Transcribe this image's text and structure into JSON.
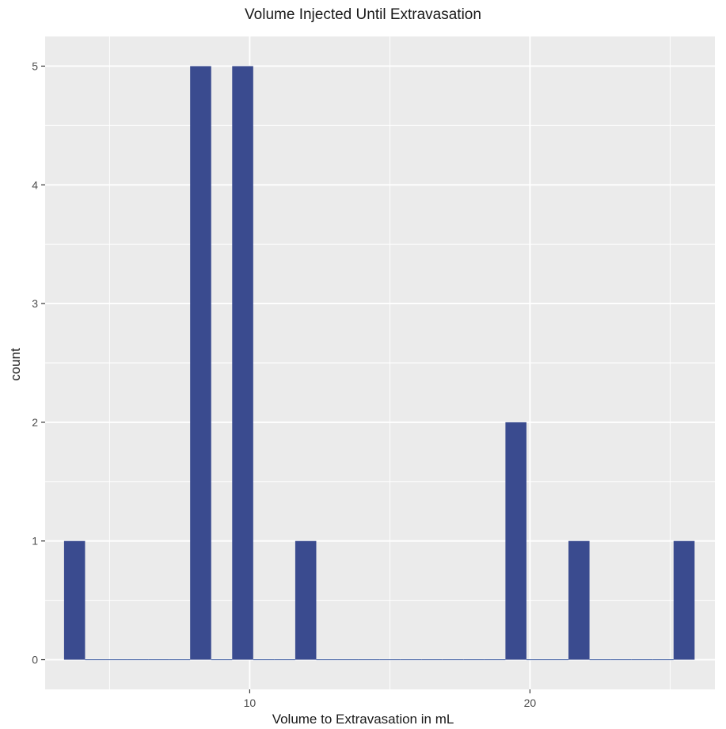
{
  "chart_data": {
    "type": "bar",
    "title": "Volume Injected Until Extravasation",
    "xlabel": "Volume to Extravasation in mL",
    "ylabel": "count",
    "x_ticks": [
      10,
      20
    ],
    "y_ticks": [
      0,
      1,
      2,
      3,
      4,
      5
    ],
    "xlim": [
      2.7,
      26.6
    ],
    "ylim": [
      -0.25,
      5.25
    ],
    "bin_width": 0.75,
    "bins": [
      {
        "x": 3.75,
        "count": 1
      },
      {
        "x": 4.5,
        "count": 0
      },
      {
        "x": 5.25,
        "count": 0
      },
      {
        "x": 6.0,
        "count": 0
      },
      {
        "x": 6.75,
        "count": 0
      },
      {
        "x": 7.5,
        "count": 0
      },
      {
        "x": 8.25,
        "count": 5
      },
      {
        "x": 9.0,
        "count": 0
      },
      {
        "x": 9.75,
        "count": 5
      },
      {
        "x": 10.5,
        "count": 0
      },
      {
        "x": 11.25,
        "count": 0
      },
      {
        "x": 12.0,
        "count": 1
      },
      {
        "x": 12.75,
        "count": 0
      },
      {
        "x": 13.5,
        "count": 0
      },
      {
        "x": 14.25,
        "count": 0
      },
      {
        "x": 15.0,
        "count": 0
      },
      {
        "x": 15.75,
        "count": 0
      },
      {
        "x": 16.5,
        "count": 0
      },
      {
        "x": 17.25,
        "count": 0
      },
      {
        "x": 18.0,
        "count": 0
      },
      {
        "x": 18.75,
        "count": 0
      },
      {
        "x": 19.5,
        "count": 2
      },
      {
        "x": 20.25,
        "count": 0
      },
      {
        "x": 21.0,
        "count": 0
      },
      {
        "x": 21.75,
        "count": 1
      },
      {
        "x": 22.5,
        "count": 0
      },
      {
        "x": 23.25,
        "count": 0
      },
      {
        "x": 24.0,
        "count": 0
      },
      {
        "x": 24.75,
        "count": 0
      },
      {
        "x": 25.5,
        "count": 1
      }
    ],
    "grid": true,
    "legend": "none",
    "bar_color": "#3a4b8f",
    "panel_color": "#ebebeb",
    "grid_color": "#ffffff"
  }
}
